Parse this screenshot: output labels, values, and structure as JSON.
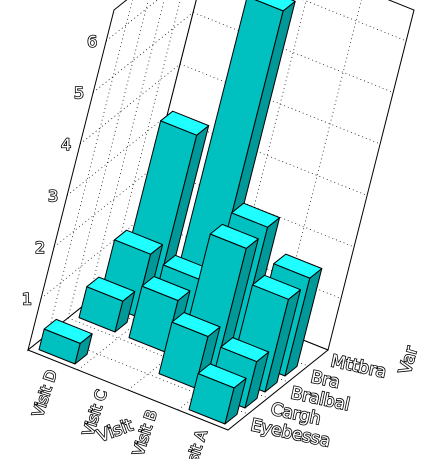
{
  "chart_data": {
    "type": "bar3d",
    "title": "",
    "x_axis_label": "Visit",
    "y_axis_label": "Var",
    "z_tick_labels": [
      "1",
      "2",
      "3",
      "4",
      "5",
      "6"
    ],
    "x_categories": [
      "Visit D",
      "Visit C",
      "Visit B",
      "Visit A"
    ],
    "y_categories": [
      "Eyebessa",
      "Cargh",
      "Bralbal",
      "Bra",
      "Mttbra"
    ],
    "grid": true,
    "bar_color": "#00c0c0",
    "bar_top_color": "#20ffff",
    "bar_side_color": "#009898",
    "bars": [
      {
        "x": "Visit D",
        "y": "Eyebessa",
        "z": 0.4
      },
      {
        "x": "Visit D",
        "y": "Bralbal",
        "z": 0.6
      },
      {
        "x": "Visit D",
        "y": "Bra",
        "z": 1.2
      },
      {
        "x": "Visit D",
        "y": "Mttbra",
        "z": 3.2
      },
      {
        "x": "Visit C",
        "y": "Bralbal",
        "z": 1.0
      },
      {
        "x": "Visit C",
        "y": "Bra",
        "z": 1.1
      },
      {
        "x": "Visit C",
        "y": "Mttbra",
        "z": 6.0
      },
      {
        "x": "Visit B",
        "y": "Cargh",
        "z": 1.0
      },
      {
        "x": "Visit B",
        "y": "Bralbal",
        "z": 2.4
      },
      {
        "x": "Visit B",
        "y": "Bra",
        "z": 2.5
      },
      {
        "x": "Visit A",
        "y": "Eyebessa",
        "z": 0.7
      },
      {
        "x": "Visit A",
        "y": "Cargh",
        "z": 0.9
      },
      {
        "x": "Visit A",
        "y": "Bralbal",
        "z": 1.8
      },
      {
        "x": "Visit A",
        "y": "Bra",
        "z": 1.9
      }
    ]
  }
}
